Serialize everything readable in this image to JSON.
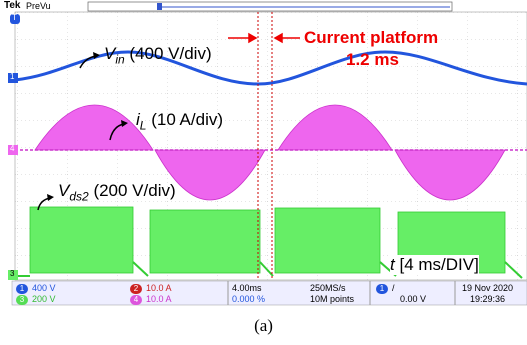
{
  "header": {
    "brand": "Tek",
    "mode": "PreVu"
  },
  "markers": {
    "trigger": "T",
    "ch1": "1",
    "ch4": "4",
    "ch3": "3"
  },
  "labels": {
    "vin": {
      "symbol": "V",
      "sub": "in",
      "scale": "(400 V/div)"
    },
    "il": {
      "symbol": "i",
      "sub": "L",
      "scale": "(10 A/div)"
    },
    "vds2": {
      "symbol": "V",
      "sub": "ds2",
      "scale": "(200 V/div)"
    },
    "platform": {
      "title": "Current platform",
      "duration": "1.2 ms"
    },
    "time": {
      "symbol": "t",
      "scale": "[4 ms/DIV]"
    }
  },
  "status": {
    "channels": [
      {
        "id": "1",
        "scale": "400 V"
      },
      {
        "id": "2",
        "scale": "10.0 A"
      },
      {
        "id": "3",
        "scale": "200 V"
      },
      {
        "id": "4",
        "scale": "10.0 A"
      }
    ],
    "timebase": "4.00ms",
    "position": "0.000 %",
    "sample_rate": "250MS/s",
    "record": "10M points",
    "trigger_channel": "1",
    "trigger_slope": "/",
    "trigger_level": "0.00 V",
    "date": "19 Nov 2020",
    "time": "19:29:36"
  },
  "caption": "(a)"
}
